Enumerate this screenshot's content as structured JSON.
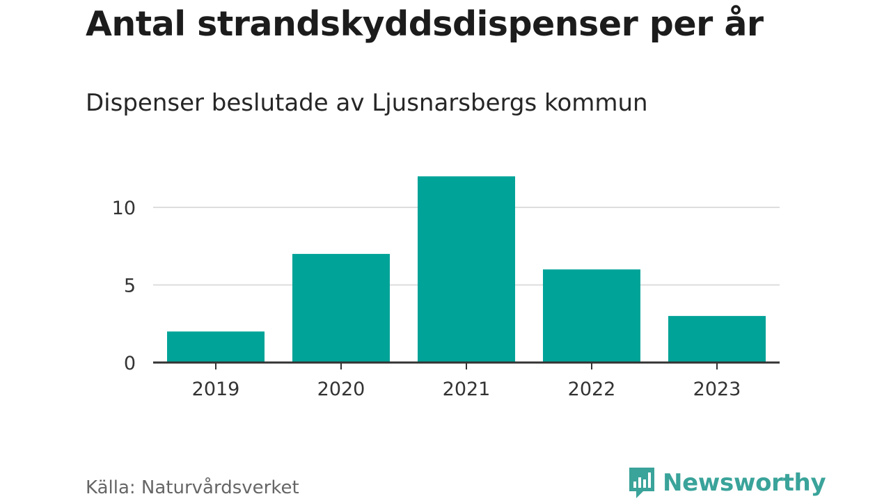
{
  "header": {
    "title": "Antal strandskyddsdispenser per år",
    "subtitle": "Dispenser beslutade av Ljusnarsbergs kommun"
  },
  "footer": {
    "source": "Källa: Naturvårdsverket",
    "brand": "Newsworthy"
  },
  "colors": {
    "bar": "#00a398",
    "grid": "#dddddd",
    "axis": "#333333",
    "brand": "#3aa39a"
  },
  "chart_data": {
    "type": "bar",
    "title": "Antal strandskyddsdispenser per år",
    "subtitle": "Dispenser beslutade av Ljusnarsbergs kommun",
    "categories": [
      "2019",
      "2020",
      "2021",
      "2022",
      "2023"
    ],
    "values": [
      2,
      7,
      12,
      6,
      3
    ],
    "yticks": [
      0,
      5,
      10
    ],
    "ylim": [
      0,
      12
    ],
    "xlabel": "",
    "ylabel": "",
    "grid": true
  }
}
